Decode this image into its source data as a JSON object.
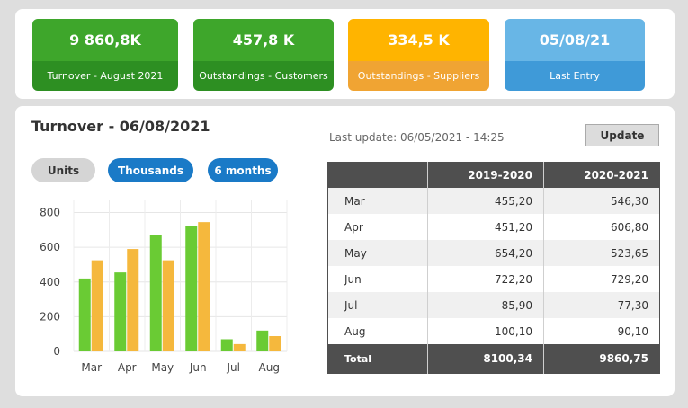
{
  "kpis": [
    {
      "value": "9 860,8K",
      "label": "Turnover - August 2021",
      "top_color": "#3ea62b",
      "bottom_color": "#2d8f22"
    },
    {
      "value": "457,8 K",
      "label": "Outstandings - Customers",
      "top_color": "#3ea62b",
      "bottom_color": "#2d8f22"
    },
    {
      "value": "334,5 K",
      "label": "Outstandings - Suppliers",
      "top_color": "#ffb400",
      "bottom_color": "#f0a433"
    },
    {
      "value": "05/08/21",
      "label": "Last Entry",
      "top_color": "#68b6e6",
      "bottom_color": "#3f9ad8"
    }
  ],
  "main": {
    "title": "Turnover - 06/08/2021",
    "last_update": "Last update: 06/05/2021 - 14:25",
    "update_label": "Update",
    "pills": [
      {
        "label": "Units",
        "active": false
      },
      {
        "label": "Thousands",
        "active": true
      },
      {
        "label": "6 months",
        "active": true
      }
    ]
  },
  "chart_data": {
    "type": "bar",
    "categories": [
      "Mar",
      "Apr",
      "May",
      "Jun",
      "Jul",
      "Aug"
    ],
    "series": [
      {
        "values": [
          420,
          455,
          670,
          725,
          70,
          120
        ],
        "color": "#6acb34"
      },
      {
        "values": [
          525,
          590,
          525,
          745,
          42,
          88
        ],
        "color": "#f5b83d"
      }
    ],
    "yticks": [
      0,
      200,
      400,
      600,
      800
    ],
    "ylim": [
      0,
      870
    ],
    "grid": true
  },
  "table": {
    "headers": [
      "",
      "2019-2020",
      "2020-2021"
    ],
    "rows": [
      [
        "Mar",
        "455,20",
        "546,30"
      ],
      [
        "Apr",
        "451,20",
        "606,80"
      ],
      [
        "May",
        "654,20",
        "523,65"
      ],
      [
        "Jun",
        "722,20",
        "729,20"
      ],
      [
        "Jul",
        "85,90",
        "77,30"
      ],
      [
        "Aug",
        "100,10",
        "90,10"
      ]
    ],
    "total": [
      "Total",
      "8100,34",
      "9860,75"
    ]
  }
}
